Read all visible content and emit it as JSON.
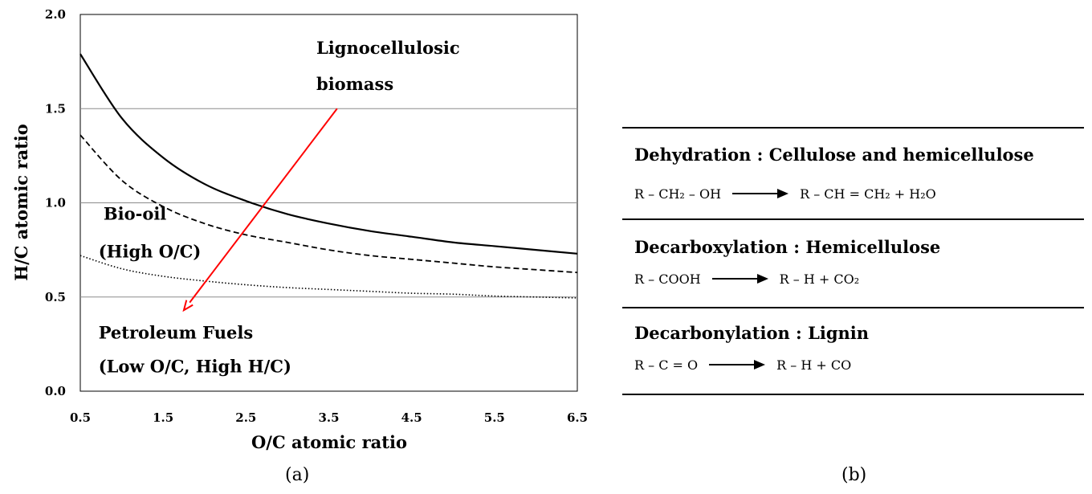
{
  "chart_data": {
    "type": "line",
    "xlabel": "O/C atomic ratio",
    "ylabel": "H/C atomic ratio",
    "xlim": [
      0.5,
      6.5
    ],
    "ylim": [
      0.0,
      2.0
    ],
    "xticks": [
      "0.5",
      "1.5",
      "2.5",
      "3.5",
      "4.5",
      "5.5",
      "6.5"
    ],
    "yticks": [
      "0.0",
      "0.5",
      "1.0",
      "1.5",
      "2.0"
    ],
    "grid": "horizontal",
    "series": [
      {
        "style": "solid",
        "x": [
          0.5,
          1.0,
          1.5,
          2.0,
          2.5,
          3.0,
          3.5,
          4.0,
          4.5,
          5.0,
          5.5,
          6.0,
          6.5
        ],
        "y": [
          1.79,
          1.45,
          1.24,
          1.1,
          1.01,
          0.94,
          0.89,
          0.85,
          0.82,
          0.79,
          0.77,
          0.75,
          0.73
        ]
      },
      {
        "style": "dashed",
        "x": [
          0.5,
          1.0,
          1.5,
          2.0,
          2.5,
          3.0,
          3.5,
          4.0,
          4.5,
          5.0,
          5.5,
          6.0,
          6.5
        ],
        "y": [
          1.36,
          1.12,
          0.98,
          0.89,
          0.83,
          0.79,
          0.75,
          0.72,
          0.7,
          0.68,
          0.66,
          0.645,
          0.63
        ]
      },
      {
        "style": "dotted",
        "x": [
          0.5,
          1.0,
          1.5,
          2.0,
          2.5,
          3.0,
          3.5,
          4.0,
          4.5,
          5.0,
          5.5,
          6.0,
          6.5
        ],
        "y": [
          0.72,
          0.65,
          0.61,
          0.585,
          0.565,
          0.55,
          0.54,
          0.53,
          0.52,
          0.515,
          0.505,
          0.5,
          0.495
        ]
      }
    ],
    "arrow": {
      "color": "#ff0000",
      "from": [
        3.6,
        1.5
      ],
      "to": [
        1.75,
        0.43
      ]
    },
    "annotations": [
      {
        "text": "Lignocellulosic",
        "x": 3.35,
        "y": 1.79
      },
      {
        "text": "biomass",
        "x": 3.35,
        "y": 1.6
      },
      {
        "text": "Bio-oil",
        "x": 0.78,
        "y": 0.91
      },
      {
        "text": "(High O/C)",
        "x": 0.72,
        "y": 0.71
      },
      {
        "text": "Petroleum Fuels",
        "x": 0.72,
        "y": 0.28
      },
      {
        "text": "(Low O/C, High H/C)",
        "x": 0.72,
        "y": 0.1
      }
    ]
  },
  "panel_labels": {
    "a": "(a)",
    "b": "(b)"
  },
  "reactions": [
    {
      "heading": "Dehydration : Cellulose and hemicellulose",
      "lhs": "R – CH₂ – OH",
      "rhs": "R – CH = CH₂ + H₂O"
    },
    {
      "heading": "Decarboxylation : Hemicellulose",
      "lhs": "R – COOH",
      "rhs": "R – H + CO₂"
    },
    {
      "heading": "Decarbonylation : Lignin",
      "lhs": "R – C = O",
      "rhs": "R – H + CO"
    }
  ]
}
